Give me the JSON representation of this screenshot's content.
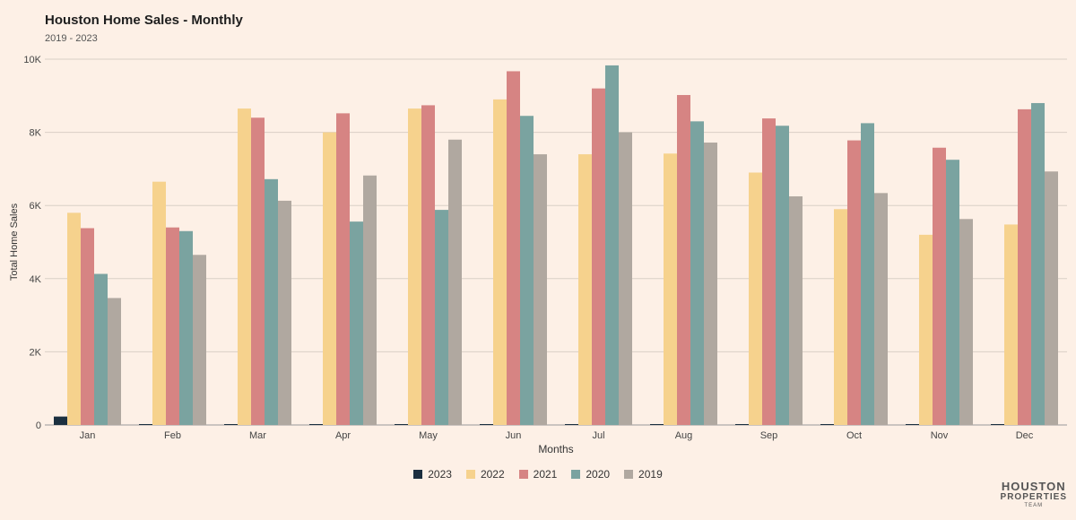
{
  "header": {
    "title": "Houston Home Sales - Monthly",
    "subtitle": "2019 - 2023"
  },
  "brand": {
    "line1": "HOUSTON",
    "line2": "PROPERTIES",
    "line3": "TEAM"
  },
  "chart_data": {
    "type": "bar",
    "title": "Houston Home Sales - Monthly",
    "subtitle": "2019 - 2023",
    "xlabel": "Months",
    "ylabel": "Total Home Sales",
    "ylim": [
      0,
      10000
    ],
    "yticks": [
      0,
      2000,
      4000,
      6000,
      8000,
      10000
    ],
    "ytick_labels": [
      "0",
      "2K",
      "4K",
      "6K",
      "8K",
      "10K"
    ],
    "grid": true,
    "legend_position": "bottom",
    "categories": [
      "Jan",
      "Feb",
      "Mar",
      "Apr",
      "May",
      "Jun",
      "Jul",
      "Aug",
      "Sep",
      "Oct",
      "Nov",
      "Dec"
    ],
    "series": [
      {
        "name": "2023",
        "color": "#1b2f3f",
        "values": [
          230,
          0,
          0,
          0,
          0,
          0,
          0,
          0,
          0,
          0,
          0,
          0
        ]
      },
      {
        "name": "2022",
        "color": "#f6d28d",
        "values": [
          5800,
          6650,
          8650,
          8000,
          8650,
          8900,
          7400,
          7420,
          6900,
          5900,
          5200,
          5480
        ]
      },
      {
        "name": "2021",
        "color": "#d68483",
        "values": [
          5380,
          5400,
          8400,
          8520,
          8740,
          9670,
          9200,
          9020,
          8380,
          7780,
          7580,
          8630
        ]
      },
      {
        "name": "2020",
        "color": "#7aa3a0",
        "values": [
          4130,
          5300,
          6720,
          5560,
          5880,
          8450,
          9830,
          8300,
          8180,
          8250,
          7250,
          8800
        ]
      },
      {
        "name": "2019",
        "color": "#b0a8a0",
        "values": [
          3470,
          4650,
          6130,
          6820,
          7800,
          7400,
          8000,
          7720,
          6250,
          6340,
          5630,
          6930
        ]
      }
    ]
  }
}
